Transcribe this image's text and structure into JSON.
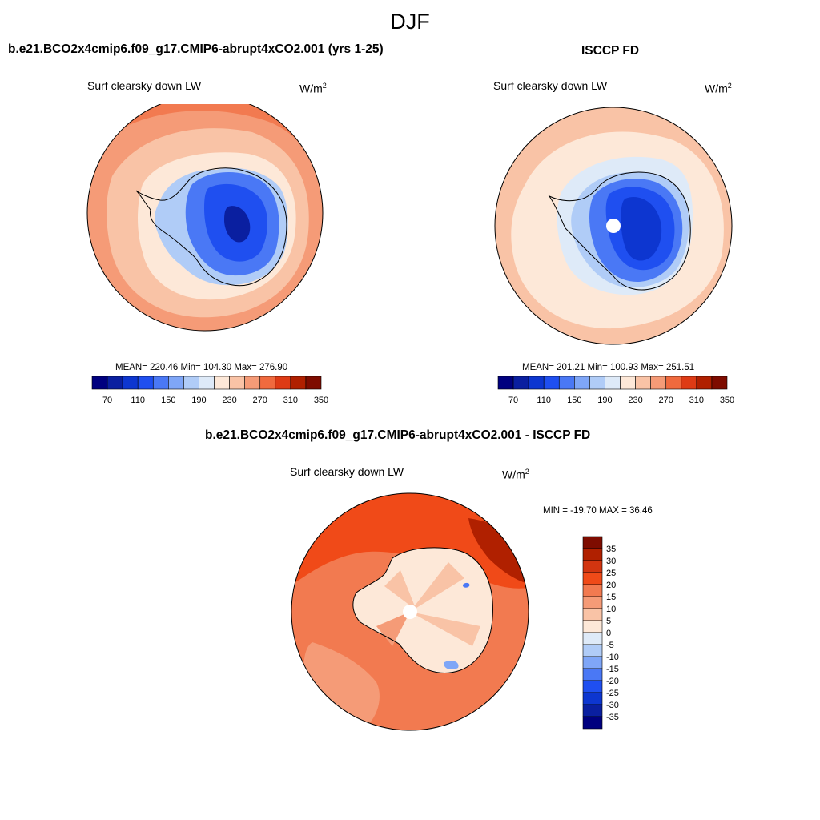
{
  "figure": {
    "title": "DJF"
  },
  "chart_data": [
    {
      "type": "heatmap",
      "id": "model",
      "title": "b.e21.BCO2x4cmip6.f09_g17.CMIP6-abrupt4xCO2.001 (yrs 1-25)",
      "subtitle": "Surf clearsky down LW",
      "units": "W/m",
      "units_sup": "2",
      "stats_text": "MEAN= 220.46  Min= 104.30  Max= 276.90",
      "mean": 220.46,
      "min": 104.3,
      "max": 276.9,
      "colorbar": {
        "orientation": "horizontal",
        "levels": [
          60,
          70,
          80,
          90,
          100,
          110,
          120,
          130,
          140,
          150,
          160,
          170,
          180,
          190,
          200,
          210,
          220,
          230,
          240,
          250,
          260,
          270,
          280,
          290,
          300,
          310,
          320,
          330,
          340,
          350,
          360
        ],
        "tick_labels": [
          "70",
          "110",
          "150",
          "190",
          "230",
          "270",
          "310",
          "350"
        ],
        "colors": [
          "#00007f",
          "#0a1fa0",
          "#0d36d0",
          "#1f4ff0",
          "#4a78f5",
          "#7fa6f7",
          "#b0ccf7",
          "#deeaf8",
          "#fde8d8",
          "#f9c3a6",
          "#f59b77",
          "#f06a3e",
          "#de3b15",
          "#b02000",
          "#7e0c00"
        ]
      }
    },
    {
      "type": "heatmap",
      "id": "obs",
      "title": "ISCCP FD",
      "subtitle": "Surf clearsky down LW",
      "units": "W/m",
      "units_sup": "2",
      "stats_text": "MEAN= 201.21  Min= 100.93  Max= 251.51",
      "mean": 201.21,
      "min": 100.93,
      "max": 251.51,
      "colorbar": {
        "orientation": "horizontal",
        "tick_labels": [
          "70",
          "110",
          "150",
          "190",
          "230",
          "270",
          "310",
          "350"
        ]
      }
    },
    {
      "type": "heatmap",
      "id": "diff",
      "title": "b.e21.BCO2x4cmip6.f09_g17.CMIP6-abrupt4xCO2.001 - ISCCP FD",
      "subtitle": "Surf clearsky down LW",
      "units": "W/m",
      "units_sup": "2",
      "stats_text": "MIN = -19.70 MAX =  36.46",
      "min": -19.7,
      "max": 36.46,
      "colorbar": {
        "orientation": "vertical",
        "tick_labels": [
          "35",
          "30",
          "25",
          "20",
          "15",
          "10",
          "5",
          "0",
          "-5",
          "-10",
          "-15",
          "-20",
          "-25",
          "-30",
          "-35"
        ],
        "colors": [
          "#7e0c00",
          "#b02000",
          "#d23510",
          "#f04a18",
          "#f27a50",
          "#f59b77",
          "#f9c3a6",
          "#fde8d8",
          "#deeaf8",
          "#b0ccf7",
          "#7fa6f7",
          "#4a78f5",
          "#1f4ff0",
          "#0d36d0",
          "#0a1fa0",
          "#00007f"
        ]
      }
    }
  ],
  "palette": {
    "ocean_model_outer": "#f27a50",
    "ocean_model_mid": "#f59b77",
    "ocean_model_inner": "#f9c3a6",
    "seaice_model": "#fde8d8",
    "ocean_obs_outer": "#f9c3a6",
    "ocean_obs_inner": "#fde8d8",
    "seaice_obs": "#deeaf8",
    "ice_dark": "#0a1fa0",
    "ice_mid": "#1f4ff0",
    "ice_light": "#4a78f5",
    "ice_pale": "#b0ccf7",
    "diff_ocean": "#f27a50",
    "diff_strong": "#f04a18",
    "diff_max": "#b02000",
    "diff_land": "#fde8d8",
    "diff_blue": "#7fa6f7"
  }
}
